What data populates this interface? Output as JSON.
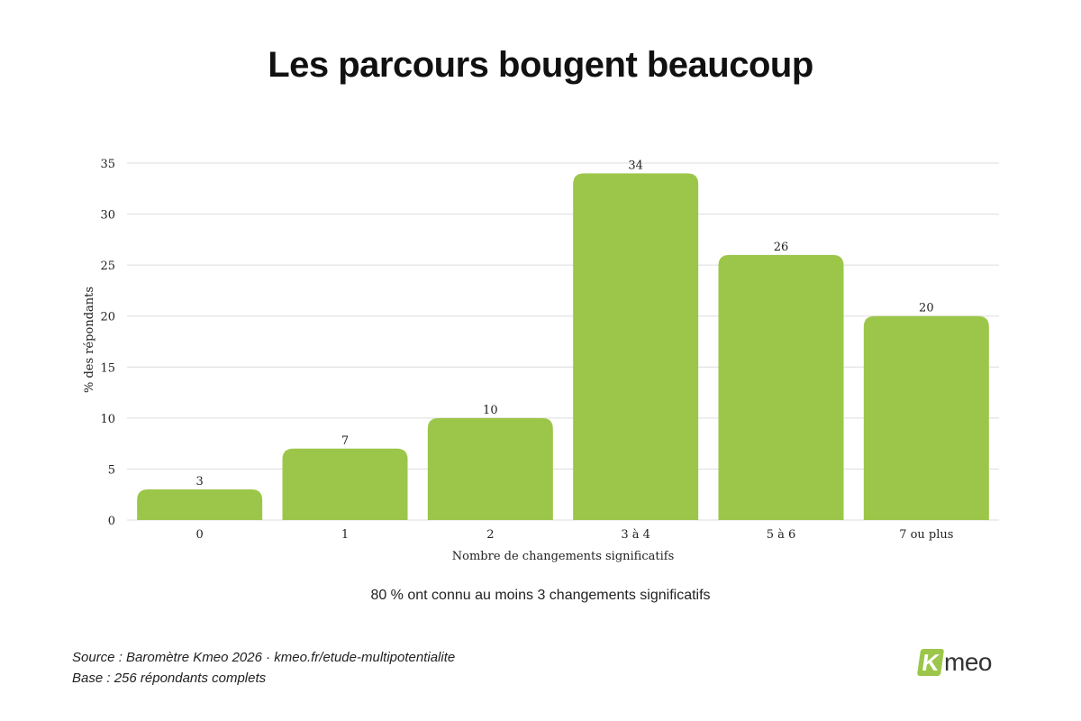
{
  "title": "Les parcours bougent beaucoup",
  "note": "80 % ont connu au moins 3 changements significatifs",
  "footer": {
    "source": "Source : Baromètre Kmeo 2026 · kmeo.fr/etude-multipotentialite",
    "base": "Base : 256 répondants complets"
  },
  "logo": {
    "k": "K",
    "rest": "meo"
  },
  "chart_data": {
    "type": "bar",
    "title": "Les parcours bougent beaucoup",
    "categories": [
      "0",
      "1",
      "2",
      "3 à 4",
      "5 à 6",
      "7 ou plus"
    ],
    "values": [
      3,
      7,
      10,
      34,
      26,
      20
    ],
    "xlabel": "Nombre de changements significatifs",
    "ylabel": "% des répondants",
    "ylim": [
      0,
      35
    ],
    "yticks": [
      0,
      5,
      10,
      15,
      20,
      25,
      30,
      35
    ],
    "grid": true,
    "bar_color": "#9cc64a",
    "grid_color": "#dddddd",
    "data_labels": true
  }
}
